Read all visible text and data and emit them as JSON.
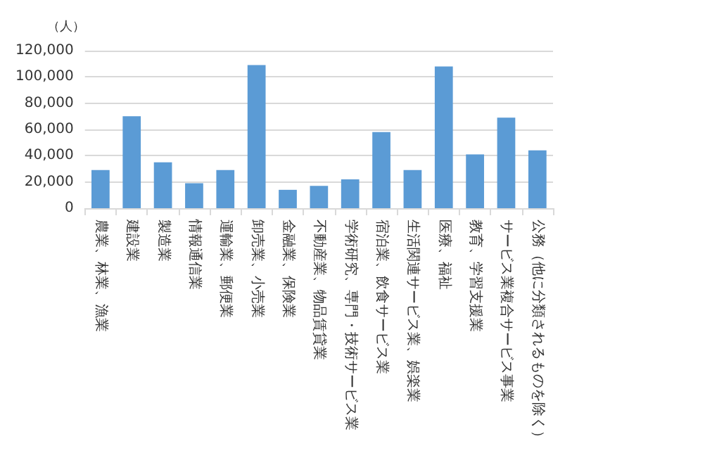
{
  "chart_data": {
    "type": "bar",
    "ylabel": "（人）",
    "categories": [
      "農業、林業、漁業",
      "建設業",
      "製造業",
      "情報通信業",
      "運輸業、郵便業",
      "卸売業、小売業",
      "金融業、保険業",
      "不動産業、物品賃貸業",
      "学術研究、専門・技術サービス業",
      "宿泊業、飲食サービス業",
      "生活関連サービス業、娯楽業",
      "医療、福祉",
      "教育、学習支援業",
      "サービス業複合サービス事業",
      "公務（他に分類されるものを除く）"
    ],
    "values": [
      29000,
      70000,
      35000,
      19000,
      29000,
      109000,
      14000,
      17000,
      22000,
      58000,
      29000,
      108000,
      41000,
      69000,
      44000
    ],
    "color": "#5b9bd5",
    "ylim": [
      0,
      120000
    ],
    "yticks": [
      0,
      {
        "value": 20000,
        "label": "20,000"
      },
      {
        "value": 40000,
        "label": "40,000"
      },
      {
        "value": 60000,
        "label": "60,000"
      },
      {
        "value": 80000,
        "label": "80,000"
      },
      {
        "value": 100000,
        "label": "100,000"
      },
      {
        "value": 120000,
        "label": "120,000"
      }
    ],
    "grid": "y"
  }
}
